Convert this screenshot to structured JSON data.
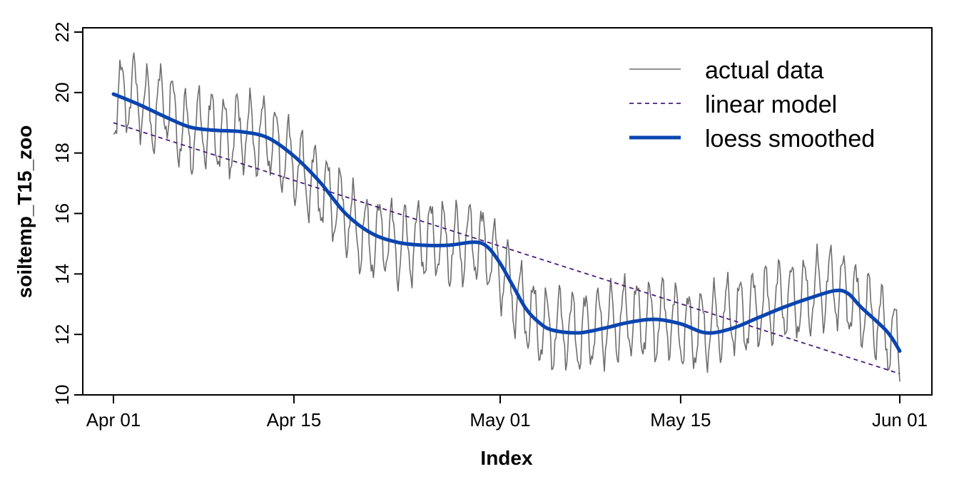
{
  "chart_data": {
    "type": "line",
    "title": "",
    "xlabel": "Index",
    "ylabel": "soiltemp_T15_zoo",
    "x_ticks": [
      {
        "day": 0,
        "label": "Apr 01"
      },
      {
        "day": 14,
        "label": "Apr 15"
      },
      {
        "day": 30,
        "label": "May 01"
      },
      {
        "day": 44,
        "label": "May 15"
      },
      {
        "day": 61,
        "label": "Jun 01"
      }
    ],
    "y_ticks": [
      10,
      12,
      14,
      16,
      18,
      20,
      22
    ],
    "xlim": [
      "Mar 31",
      "Jun 03"
    ],
    "ylim": [
      10,
      22
    ],
    "grid": false,
    "legend_position": "top-right",
    "series": [
      {
        "name": "actual data",
        "style": "solid-thin",
        "color": "#6e6e6e",
        "x": [
          "Apr 01",
          "Apr 02",
          "Apr 03",
          "Apr 04",
          "Apr 05",
          "Apr 06",
          "Apr 07",
          "Apr 08",
          "Apr 09",
          "Apr 10",
          "Apr 11",
          "Apr 12",
          "Apr 13",
          "Apr 14",
          "Apr 15",
          "Apr 16",
          "Apr 17",
          "Apr 18",
          "Apr 19",
          "Apr 20",
          "Apr 21",
          "Apr 22",
          "Apr 23",
          "Apr 24",
          "Apr 25",
          "Apr 26",
          "Apr 27",
          "Apr 28",
          "Apr 29",
          "Apr 30",
          "May 01",
          "May 02",
          "May 03",
          "May 04",
          "May 05",
          "May 06",
          "May 07",
          "May 08",
          "May 09",
          "May 10",
          "May 11",
          "May 12",
          "May 13",
          "May 14",
          "May 15",
          "May 16",
          "May 17",
          "May 18",
          "May 19",
          "May 20",
          "May 21",
          "May 22",
          "May 23",
          "May 24",
          "May 25",
          "May 26",
          "May 27",
          "May 28",
          "May 29",
          "May 30",
          "May 31",
          "Jun 01"
        ],
        "y_daily_mean": [
          19.6,
          20.0,
          19.9,
          19.2,
          19.8,
          18.9,
          18.6,
          18.9,
          18.7,
          18.5,
          18.8,
          18.5,
          18.6,
          18.0,
          17.7,
          17.2,
          16.9,
          16.4,
          16.0,
          15.4,
          15.1,
          15.3,
          14.9,
          15.0,
          15.1,
          15.2,
          14.9,
          15.0,
          15.1,
          14.8,
          14.2,
          13.4,
          12.8,
          12.3,
          12.1,
          12.3,
          12.0,
          12.2,
          12.3,
          12.4,
          12.6,
          12.5,
          12.4,
          12.6,
          12.2,
          12.1,
          12.2,
          12.4,
          12.7,
          12.6,
          12.9,
          13.0,
          13.2,
          13.1,
          13.3,
          13.5,
          13.6,
          13.3,
          12.9,
          12.6,
          12.1,
          11.6
        ],
        "daily_amplitude": 1.2
      },
      {
        "name": "linear model",
        "style": "dashed",
        "color": "#4b1a7a",
        "x": [
          "Apr 01",
          "Jun 01"
        ],
        "y": [
          19.0,
          10.7
        ]
      },
      {
        "name": "loess smoothed",
        "style": "solid-thick",
        "color": "#0a45b0",
        "x": [
          "Apr 01",
          "Apr 03",
          "Apr 05",
          "Apr 07",
          "Apr 09",
          "Apr 11",
          "Apr 13",
          "Apr 15",
          "Apr 17",
          "Apr 19",
          "Apr 21",
          "Apr 23",
          "Apr 25",
          "Apr 27",
          "Apr 29",
          "Apr 30",
          "May 01",
          "May 02",
          "May 03",
          "May 04",
          "May 05",
          "May 07",
          "May 09",
          "May 11",
          "May 13",
          "May 15",
          "May 17",
          "May 19",
          "May 21",
          "May 23",
          "May 25",
          "May 27",
          "May 28",
          "May 29",
          "May 31",
          "Jun 01"
        ],
        "y": [
          19.95,
          19.6,
          19.2,
          18.85,
          18.75,
          18.7,
          18.5,
          17.9,
          17.05,
          16.0,
          15.35,
          15.05,
          14.95,
          14.95,
          15.05,
          14.9,
          14.35,
          13.6,
          12.85,
          12.4,
          12.15,
          12.05,
          12.2,
          12.4,
          12.5,
          12.35,
          12.05,
          12.2,
          12.55,
          12.9,
          13.2,
          13.45,
          13.35,
          12.9,
          12.1,
          11.45
        ]
      }
    ]
  }
}
